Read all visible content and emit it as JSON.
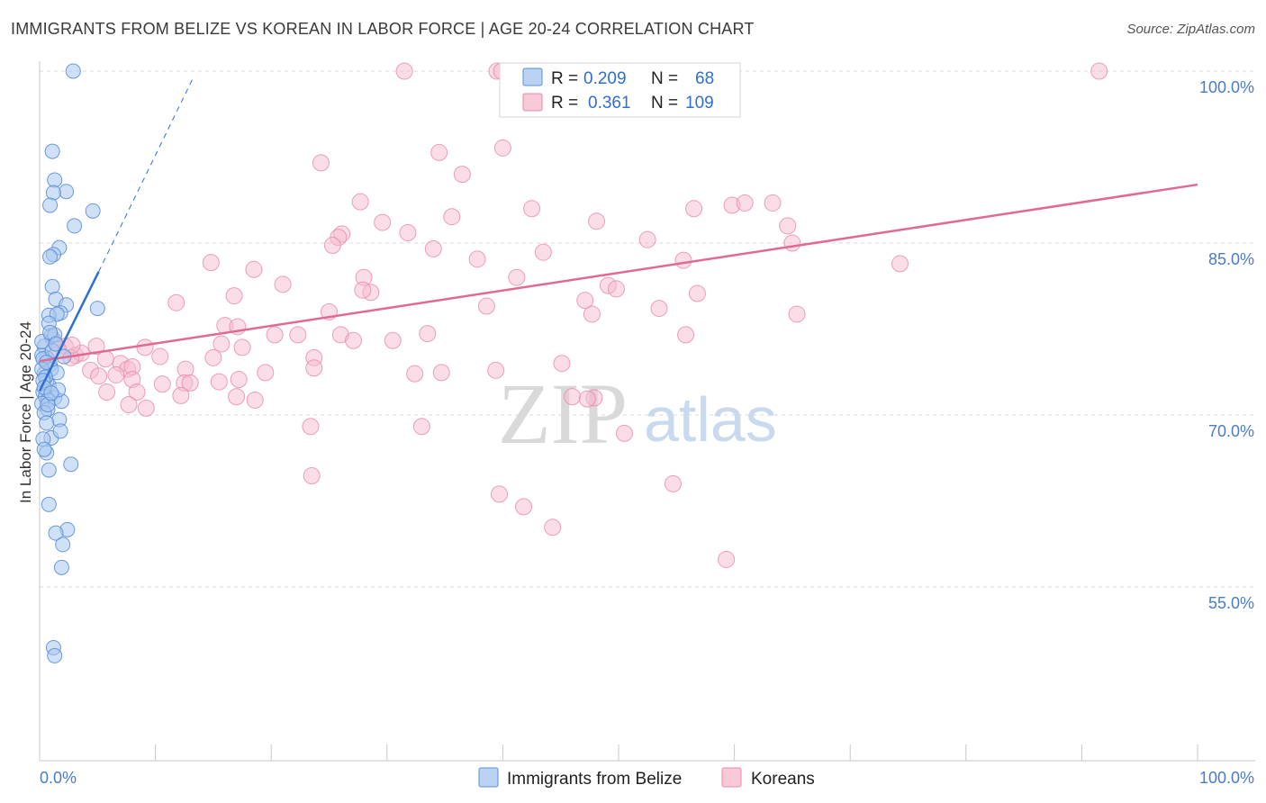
{
  "header": {
    "title": "IMMIGRANTS FROM BELIZE VS KOREAN IN LABOR FORCE | AGE 20-24 CORRELATION CHART",
    "source": "Source: ZipAtlas.com"
  },
  "colors": {
    "blue_fill": "#a9c8f0",
    "blue_stroke": "#5b8fd6",
    "blue_line": "#2f6fd1",
    "pink_fill": "#f6bccd",
    "pink_stroke": "#e88aa8",
    "pink_line": "#e06a93",
    "grid": "#d9d9d9",
    "tick_label": "#4a7cc7"
  },
  "watermark": {
    "part1": "ZIP",
    "part2": "atlas"
  },
  "legend": {
    "rows": [
      {
        "r_label": "R =",
        "r_value": "0.209",
        "n_label": "N =",
        "n_value": "68"
      },
      {
        "r_label": "R =",
        "r_value": "0.361",
        "n_label": "N =",
        "n_value": "109"
      }
    ]
  },
  "bottom_legend": [
    "Immigrants from Belize",
    "Koreans"
  ],
  "chart_data": {
    "type": "scatter",
    "title": "IMMIGRANTS FROM BELIZE VS KOREAN IN LABOR FORCE | AGE 20-24 CORRELATION CHART",
    "xlabel": "",
    "ylabel": "In Labor Force | Age 20-24",
    "xlim": [
      0,
      100
    ],
    "ylim": [
      40,
      101
    ],
    "x_tick_labels": [
      "0.0%",
      "100.0%"
    ],
    "y_ticks": [
      55,
      70,
      85,
      100
    ],
    "y_tick_labels": [
      "55.0%",
      "70.0%",
      "85.0%",
      "100.0%"
    ],
    "grid": true,
    "series": [
      {
        "name": "Immigrants from Belize",
        "r": 0.209,
        "n": 68,
        "trend": {
          "x": [
            0,
            5.1
          ],
          "y": [
            72.1,
            82.5
          ],
          "dashed_to": [
            13.3,
            99.5
          ]
        },
        "points": [
          [
            2.9,
            100
          ],
          [
            1.1,
            93
          ],
          [
            1.3,
            90.5
          ],
          [
            2.3,
            89.5
          ],
          [
            1.2,
            89.4
          ],
          [
            0.9,
            88.3
          ],
          [
            4.6,
            87.8
          ],
          [
            3.0,
            86.5
          ],
          [
            1.7,
            84.6
          ],
          [
            1.2,
            84.0
          ],
          [
            0.9,
            83.8
          ],
          [
            1.1,
            81.2
          ],
          [
            1.4,
            80.1
          ],
          [
            2.3,
            79.6
          ],
          [
            5.0,
            79.3
          ],
          [
            1.8,
            78.9
          ],
          [
            0.8,
            78.7
          ],
          [
            1.5,
            78.8
          ],
          [
            0.8,
            78.0
          ],
          [
            1.0,
            76.9
          ],
          [
            1.3,
            77.0
          ],
          [
            0.4,
            76.0
          ],
          [
            0.6,
            75.0
          ],
          [
            0.9,
            74.4
          ],
          [
            0.2,
            75.2
          ],
          [
            0.3,
            74.9
          ],
          [
            1.0,
            74.0
          ],
          [
            0.4,
            73.6
          ],
          [
            1.5,
            73.7
          ],
          [
            0.6,
            72.9
          ],
          [
            0.3,
            72.0
          ],
          [
            0.8,
            72.6
          ],
          [
            0.5,
            71.6
          ],
          [
            1.3,
            71.5
          ],
          [
            1.9,
            71.2
          ],
          [
            0.7,
            71.3
          ],
          [
            0.2,
            71.0
          ],
          [
            0.7,
            70.5
          ],
          [
            0.4,
            70.2
          ],
          [
            1.7,
            69.6
          ],
          [
            0.6,
            69.3
          ],
          [
            1.0,
            68.0
          ],
          [
            1.8,
            68.6
          ],
          [
            0.3,
            67.9
          ],
          [
            0.6,
            66.7
          ],
          [
            0.4,
            67.0
          ],
          [
            2.7,
            65.7
          ],
          [
            0.8,
            65.2
          ],
          [
            0.8,
            62.2
          ],
          [
            2.4,
            60.0
          ],
          [
            1.4,
            59.7
          ],
          [
            2.0,
            58.7
          ],
          [
            1.9,
            56.7
          ],
          [
            1.2,
            49.7
          ],
          [
            1.3,
            49.0
          ],
          [
            0.2,
            74.0
          ],
          [
            0.5,
            73.3
          ],
          [
            1.1,
            75.6
          ],
          [
            0.2,
            76.4
          ],
          [
            0.7,
            70.9
          ],
          [
            1.6,
            72.2
          ],
          [
            0.9,
            77.2
          ],
          [
            0.3,
            73.0
          ],
          [
            1.4,
            76.2
          ],
          [
            0.6,
            74.6
          ],
          [
            2.1,
            75.1
          ],
          [
            0.4,
            72.4
          ],
          [
            1.0,
            71.9
          ]
        ]
      },
      {
        "name": "Koreans",
        "r": 0.361,
        "n": 109,
        "trend": {
          "x": [
            0,
            100
          ],
          "y": [
            74.7,
            90.1
          ]
        },
        "points": [
          [
            31.5,
            100
          ],
          [
            39.5,
            100
          ],
          [
            39.9,
            100
          ],
          [
            91.5,
            100
          ],
          [
            40.0,
            93.3
          ],
          [
            34.5,
            92.9
          ],
          [
            24.3,
            92.0
          ],
          [
            36.5,
            91.0
          ],
          [
            27.7,
            88.6
          ],
          [
            42.5,
            88.0
          ],
          [
            56.5,
            88.0
          ],
          [
            59.8,
            88.3
          ],
          [
            60.9,
            88.5
          ],
          [
            63.3,
            88.5
          ],
          [
            35.6,
            87.3
          ],
          [
            29.6,
            86.8
          ],
          [
            48.1,
            86.9
          ],
          [
            64.6,
            86.5
          ],
          [
            26.1,
            85.8
          ],
          [
            31.8,
            85.9
          ],
          [
            52.5,
            85.3
          ],
          [
            25.8,
            85.5
          ],
          [
            25.3,
            84.8
          ],
          [
            34.0,
            84.5
          ],
          [
            43.5,
            84.2
          ],
          [
            65.0,
            85.0
          ],
          [
            37.8,
            83.6
          ],
          [
            55.6,
            83.5
          ],
          [
            14.8,
            83.3
          ],
          [
            74.3,
            83.2
          ],
          [
            18.5,
            82.7
          ],
          [
            28.0,
            82.0
          ],
          [
            41.2,
            82.0
          ],
          [
            21.0,
            81.4
          ],
          [
            49.1,
            81.3
          ],
          [
            49.8,
            81.0
          ],
          [
            28.6,
            80.7
          ],
          [
            27.9,
            80.9
          ],
          [
            56.8,
            80.6
          ],
          [
            16.8,
            80.4
          ],
          [
            47.1,
            80.0
          ],
          [
            11.8,
            79.8
          ],
          [
            38.6,
            79.5
          ],
          [
            53.5,
            79.3
          ],
          [
            25.0,
            79.0
          ],
          [
            47.7,
            78.8
          ],
          [
            65.4,
            78.8
          ],
          [
            16.0,
            77.8
          ],
          [
            17.1,
            77.7
          ],
          [
            22.3,
            77.0
          ],
          [
            26.0,
            77.0
          ],
          [
            33.5,
            77.1
          ],
          [
            20.3,
            77.0
          ],
          [
            55.8,
            77.0
          ],
          [
            27.1,
            76.5
          ],
          [
            30.5,
            76.5
          ],
          [
            15.7,
            76.2
          ],
          [
            17.5,
            75.9
          ],
          [
            2.2,
            76.0
          ],
          [
            4.9,
            76.0
          ],
          [
            9.1,
            75.9
          ],
          [
            10.4,
            75.1
          ],
          [
            15.0,
            75.0
          ],
          [
            23.7,
            75.0
          ],
          [
            3.1,
            75.2
          ],
          [
            3.6,
            75.4
          ],
          [
            2.7,
            75.0
          ],
          [
            5.7,
            74.9
          ],
          [
            7.0,
            74.5
          ],
          [
            7.6,
            74.0
          ],
          [
            8.0,
            74.2
          ],
          [
            12.6,
            74.0
          ],
          [
            19.5,
            73.7
          ],
          [
            23.7,
            74.1
          ],
          [
            32.4,
            73.6
          ],
          [
            34.7,
            73.7
          ],
          [
            39.4,
            73.9
          ],
          [
            45.1,
            74.5
          ],
          [
            4.4,
            73.9
          ],
          [
            5.1,
            73.4
          ],
          [
            6.6,
            73.5
          ],
          [
            10.6,
            72.7
          ],
          [
            12.5,
            72.8
          ],
          [
            13.0,
            72.8
          ],
          [
            15.5,
            72.9
          ],
          [
            17.2,
            73.1
          ],
          [
            8.0,
            73.1
          ],
          [
            5.8,
            72.0
          ],
          [
            8.4,
            72.0
          ],
          [
            12.2,
            71.7
          ],
          [
            17.0,
            71.6
          ],
          [
            18.6,
            71.3
          ],
          [
            46.0,
            71.6
          ],
          [
            7.7,
            70.9
          ],
          [
            9.2,
            70.6
          ],
          [
            33.0,
            69.0
          ],
          [
            23.4,
            69.0
          ],
          [
            47.9,
            71.5
          ],
          [
            47.3,
            71.4
          ],
          [
            50.5,
            68.4
          ],
          [
            23.5,
            64.7
          ],
          [
            54.7,
            64.0
          ],
          [
            39.7,
            63.1
          ],
          [
            44.3,
            60.2
          ],
          [
            59.3,
            57.4
          ],
          [
            41.8,
            62.0
          ],
          [
            1.2,
            76.5
          ],
          [
            2.8,
            76.1
          ],
          [
            1.6,
            75.7
          ]
        ]
      }
    ]
  }
}
